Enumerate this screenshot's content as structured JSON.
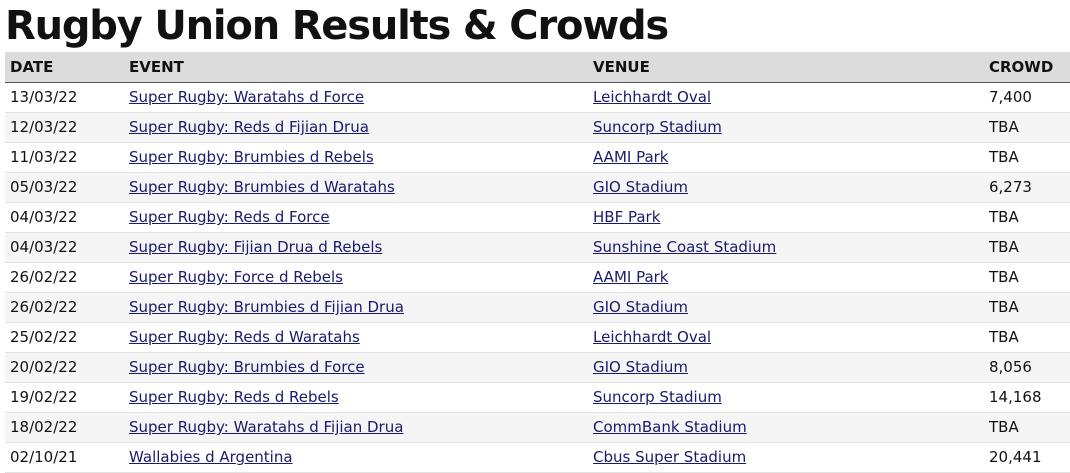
{
  "page": {
    "title": "Rugby Union Results & Crowds"
  },
  "table": {
    "headers": {
      "date": "DATE",
      "event": "EVENT",
      "venue": "VENUE",
      "crowd": "CROWD"
    },
    "rows": [
      {
        "date": "13/03/22",
        "event": "Super Rugby: Waratahs d Force",
        "venue": "Leichhardt Oval",
        "crowd": "7,400"
      },
      {
        "date": "12/03/22",
        "event": "Super Rugby: Reds d Fijian Drua",
        "venue": "Suncorp Stadium",
        "crowd": "TBA"
      },
      {
        "date": "11/03/22",
        "event": "Super Rugby: Brumbies d Rebels",
        "venue": "AAMI Park",
        "crowd": "TBA"
      },
      {
        "date": "05/03/22",
        "event": "Super Rugby: Brumbies d Waratahs",
        "venue": "GIO Stadium",
        "crowd": "6,273"
      },
      {
        "date": "04/03/22",
        "event": "Super Rugby: Reds d Force",
        "venue": "HBF Park",
        "crowd": "TBA"
      },
      {
        "date": "04/03/22",
        "event": "Super Rugby: Fijian Drua d Rebels",
        "venue": "Sunshine Coast Stadium",
        "crowd": "TBA"
      },
      {
        "date": "26/02/22",
        "event": "Super Rugby: Force d Rebels",
        "venue": "AAMI Park",
        "crowd": "TBA"
      },
      {
        "date": "26/02/22",
        "event": "Super Rugby: Brumbies d Fijian Drua",
        "venue": "GIO Stadium",
        "crowd": "TBA"
      },
      {
        "date": "25/02/22",
        "event": "Super Rugby: Reds d Waratahs",
        "venue": "Leichhardt Oval",
        "crowd": "TBA"
      },
      {
        "date": "20/02/22",
        "event": "Super Rugby: Brumbies d Force",
        "venue": "GIO Stadium",
        "crowd": "8,056"
      },
      {
        "date": "19/02/22",
        "event": "Super Rugby: Reds d Rebels",
        "venue": "Suncorp Stadium",
        "crowd": "14,168"
      },
      {
        "date": "18/02/22",
        "event": "Super Rugby: Waratahs d Fijian Drua",
        "venue": "CommBank Stadium",
        "crowd": "TBA"
      },
      {
        "date": "02/10/21",
        "event": "Wallabies d Argentina",
        "venue": "Cbus Super Stadium",
        "crowd": "20,441"
      }
    ]
  }
}
